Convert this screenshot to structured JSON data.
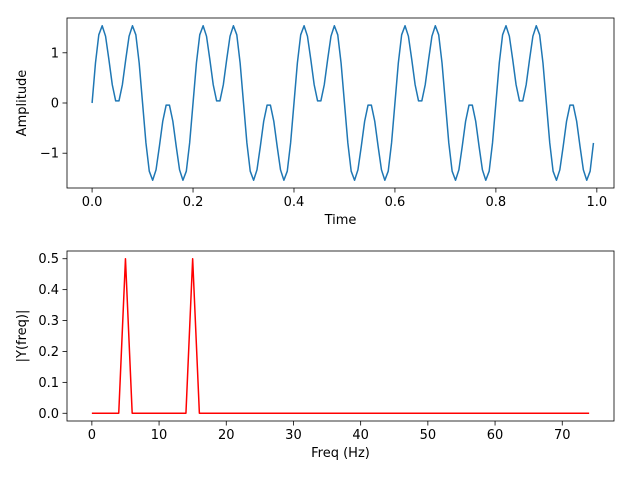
{
  "chart_data": [
    {
      "type": "line",
      "xlabel": "Time",
      "ylabel": "Amplitude",
      "x": [
        0,
        0.0067,
        0.0133,
        0.02,
        0.0267,
        0.0333,
        0.04,
        0.0467,
        0.0533,
        0.06,
        0.0667,
        0.0733,
        0.08,
        0.0867,
        0.0933,
        0.1,
        0.1067,
        0.1133,
        0.12,
        0.1267,
        0.1333,
        0.14,
        0.1467,
        0.1533,
        0.16,
        0.1667,
        0.1733,
        0.18,
        0.1867,
        0.1933,
        0.2,
        0.2067,
        0.2133,
        0.22,
        0.2267,
        0.2333,
        0.24,
        0.2467,
        0.2533,
        0.26,
        0.2667,
        0.2733,
        0.28,
        0.2867,
        0.2933,
        0.3,
        0.3067,
        0.3133,
        0.32,
        0.3267,
        0.3333,
        0.34,
        0.3467,
        0.3533,
        0.36,
        0.3667,
        0.3733,
        0.38,
        0.3867,
        0.3933,
        0.4,
        0.4067,
        0.4133,
        0.42,
        0.4267,
        0.4333,
        0.44,
        0.4467,
        0.4533,
        0.46,
        0.4667,
        0.4733,
        0.48,
        0.4867,
        0.4933,
        0.5,
        0.5067,
        0.5133,
        0.52,
        0.5267,
        0.5333,
        0.54,
        0.5467,
        0.5533,
        0.56,
        0.5667,
        0.5733,
        0.58,
        0.5867,
        0.5933,
        0.6,
        0.6067,
        0.6133,
        0.62,
        0.6267,
        0.6333,
        0.64,
        0.6467,
        0.6533,
        0.66,
        0.6667,
        0.6733,
        0.68,
        0.6867,
        0.6933,
        0.7,
        0.7067,
        0.7133,
        0.72,
        0.7267,
        0.7333,
        0.74,
        0.7467,
        0.7533,
        0.76,
        0.7667,
        0.7733,
        0.78,
        0.7867,
        0.7933,
        0.8,
        0.8067,
        0.8133,
        0.82,
        0.8267,
        0.8333,
        0.84,
        0.8467,
        0.8533,
        0.86,
        0.8667,
        0.8733,
        0.88,
        0.8867,
        0.8933,
        0.9,
        0.9067,
        0.9133,
        0.92,
        0.9267,
        0.9333,
        0.94,
        0.9467,
        0.9533,
        0.96,
        0.9667,
        0.9733,
        0.98,
        0.9867,
        0.9933
      ],
      "series": [
        {
          "color": "#1f77b4",
          "values": [
            0,
            0.796,
            1.358,
            1.539,
            1.331,
            0.866,
            0.363,
            0.043,
            0.043,
            0.363,
            0.866,
            1.331,
            1.539,
            1.358,
            0.796,
            0,
            -0.796,
            -1.358,
            -1.539,
            -1.331,
            -0.866,
            -0.363,
            -0.043,
            -0.043,
            -0.363,
            -0.866,
            -1.331,
            -1.539,
            -1.358,
            -0.796,
            0,
            0.796,
            1.358,
            1.539,
            1.331,
            0.866,
            0.363,
            0.043,
            0.043,
            0.363,
            0.866,
            1.331,
            1.539,
            1.358,
            0.796,
            0,
            -0.796,
            -1.358,
            -1.539,
            -1.331,
            -0.866,
            -0.363,
            -0.043,
            -0.043,
            -0.363,
            -0.866,
            -1.331,
            -1.539,
            -1.358,
            -0.796,
            0,
            0.796,
            1.358,
            1.539,
            1.331,
            0.866,
            0.363,
            0.043,
            0.043,
            0.363,
            0.866,
            1.331,
            1.539,
            1.358,
            0.796,
            0,
            -0.796,
            -1.358,
            -1.539,
            -1.331,
            -0.866,
            -0.363,
            -0.043,
            -0.043,
            -0.363,
            -0.866,
            -1.331,
            -1.539,
            -1.358,
            -0.796,
            0,
            0.796,
            1.358,
            1.539,
            1.331,
            0.866,
            0.363,
            0.043,
            0.043,
            0.363,
            0.866,
            1.331,
            1.539,
            1.358,
            0.796,
            0,
            -0.796,
            -1.358,
            -1.539,
            -1.331,
            -0.866,
            -0.363,
            -0.043,
            -0.043,
            -0.363,
            -0.866,
            -1.331,
            -1.539,
            -1.358,
            -0.796,
            0,
            0.796,
            1.358,
            1.539,
            1.331,
            0.866,
            0.363,
            0.043,
            0.043,
            0.363,
            0.866,
            1.331,
            1.539,
            1.358,
            0.796,
            0,
            -0.796,
            -1.358,
            -1.539,
            -1.331,
            -0.866,
            -0.363,
            -0.043,
            -0.043,
            -0.363,
            -0.866,
            -1.331,
            -1.539,
            -1.358,
            -0.796
          ]
        }
      ],
      "xlim": [
        -0.0497,
        1.034
      ],
      "ylim": [
        -1.693,
        1.693
      ],
      "xticks": [
        {
          "value": 0,
          "label": "0.0"
        },
        {
          "value": 0.2,
          "label": "0.2"
        },
        {
          "value": 0.4,
          "label": "0.4"
        },
        {
          "value": 0.6,
          "label": "0.6"
        },
        {
          "value": 0.8,
          "label": "0.8"
        },
        {
          "value": 1,
          "label": "1.0"
        }
      ],
      "yticks": [
        {
          "value": -1,
          "label": "−1"
        },
        0,
        1
      ]
    },
    {
      "type": "line",
      "xlabel": "Freq (Hz)",
      "ylabel": "|Y(freq)|",
      "x": [
        0,
        1,
        2,
        3,
        4,
        5,
        6,
        7,
        8,
        9,
        10,
        11,
        12,
        13,
        14,
        15,
        16,
        17,
        18,
        19,
        20,
        21,
        22,
        23,
        24,
        25,
        26,
        27,
        28,
        29,
        30,
        31,
        32,
        33,
        34,
        35,
        36,
        37,
        38,
        39,
        40,
        41,
        42,
        43,
        44,
        45,
        46,
        47,
        48,
        49,
        50,
        51,
        52,
        53,
        54,
        55,
        56,
        57,
        58,
        59,
        60,
        61,
        62,
        63,
        64,
        65,
        66,
        67,
        68,
        69,
        70,
        71,
        72,
        73,
        74
      ],
      "series": [
        {
          "color": "#ff0000",
          "values": [
            0,
            0,
            0,
            0,
            0,
            0.5,
            0,
            0,
            0,
            0,
            0,
            0,
            0,
            0,
            0,
            0.5,
            0,
            0,
            0,
            0,
            0,
            0,
            0,
            0,
            0,
            0,
            0,
            0,
            0,
            0,
            0,
            0,
            0,
            0,
            0,
            0,
            0,
            0,
            0,
            0,
            0,
            0,
            0,
            0,
            0,
            0,
            0,
            0,
            0,
            0,
            0,
            0,
            0,
            0,
            0,
            0,
            0,
            0,
            0,
            0,
            0,
            0,
            0,
            0,
            0,
            0,
            0,
            0,
            0,
            0,
            0,
            0,
            0,
            0,
            0
          ]
        }
      ],
      "xlim": [
        -3.7,
        77.7
      ],
      "ylim": [
        -0.025,
        0.525
      ],
      "xticks": [
        0,
        10,
        20,
        30,
        40,
        50,
        60,
        70
      ],
      "yticks": [
        {
          "value": 0,
          "label": "0.0"
        },
        {
          "value": 0.1,
          "label": "0.1"
        },
        {
          "value": 0.2,
          "label": "0.2"
        },
        {
          "value": 0.3,
          "label": "0.3"
        },
        {
          "value": 0.4,
          "label": "0.4"
        },
        {
          "value": 0.5,
          "label": "0.5"
        }
      ]
    }
  ]
}
